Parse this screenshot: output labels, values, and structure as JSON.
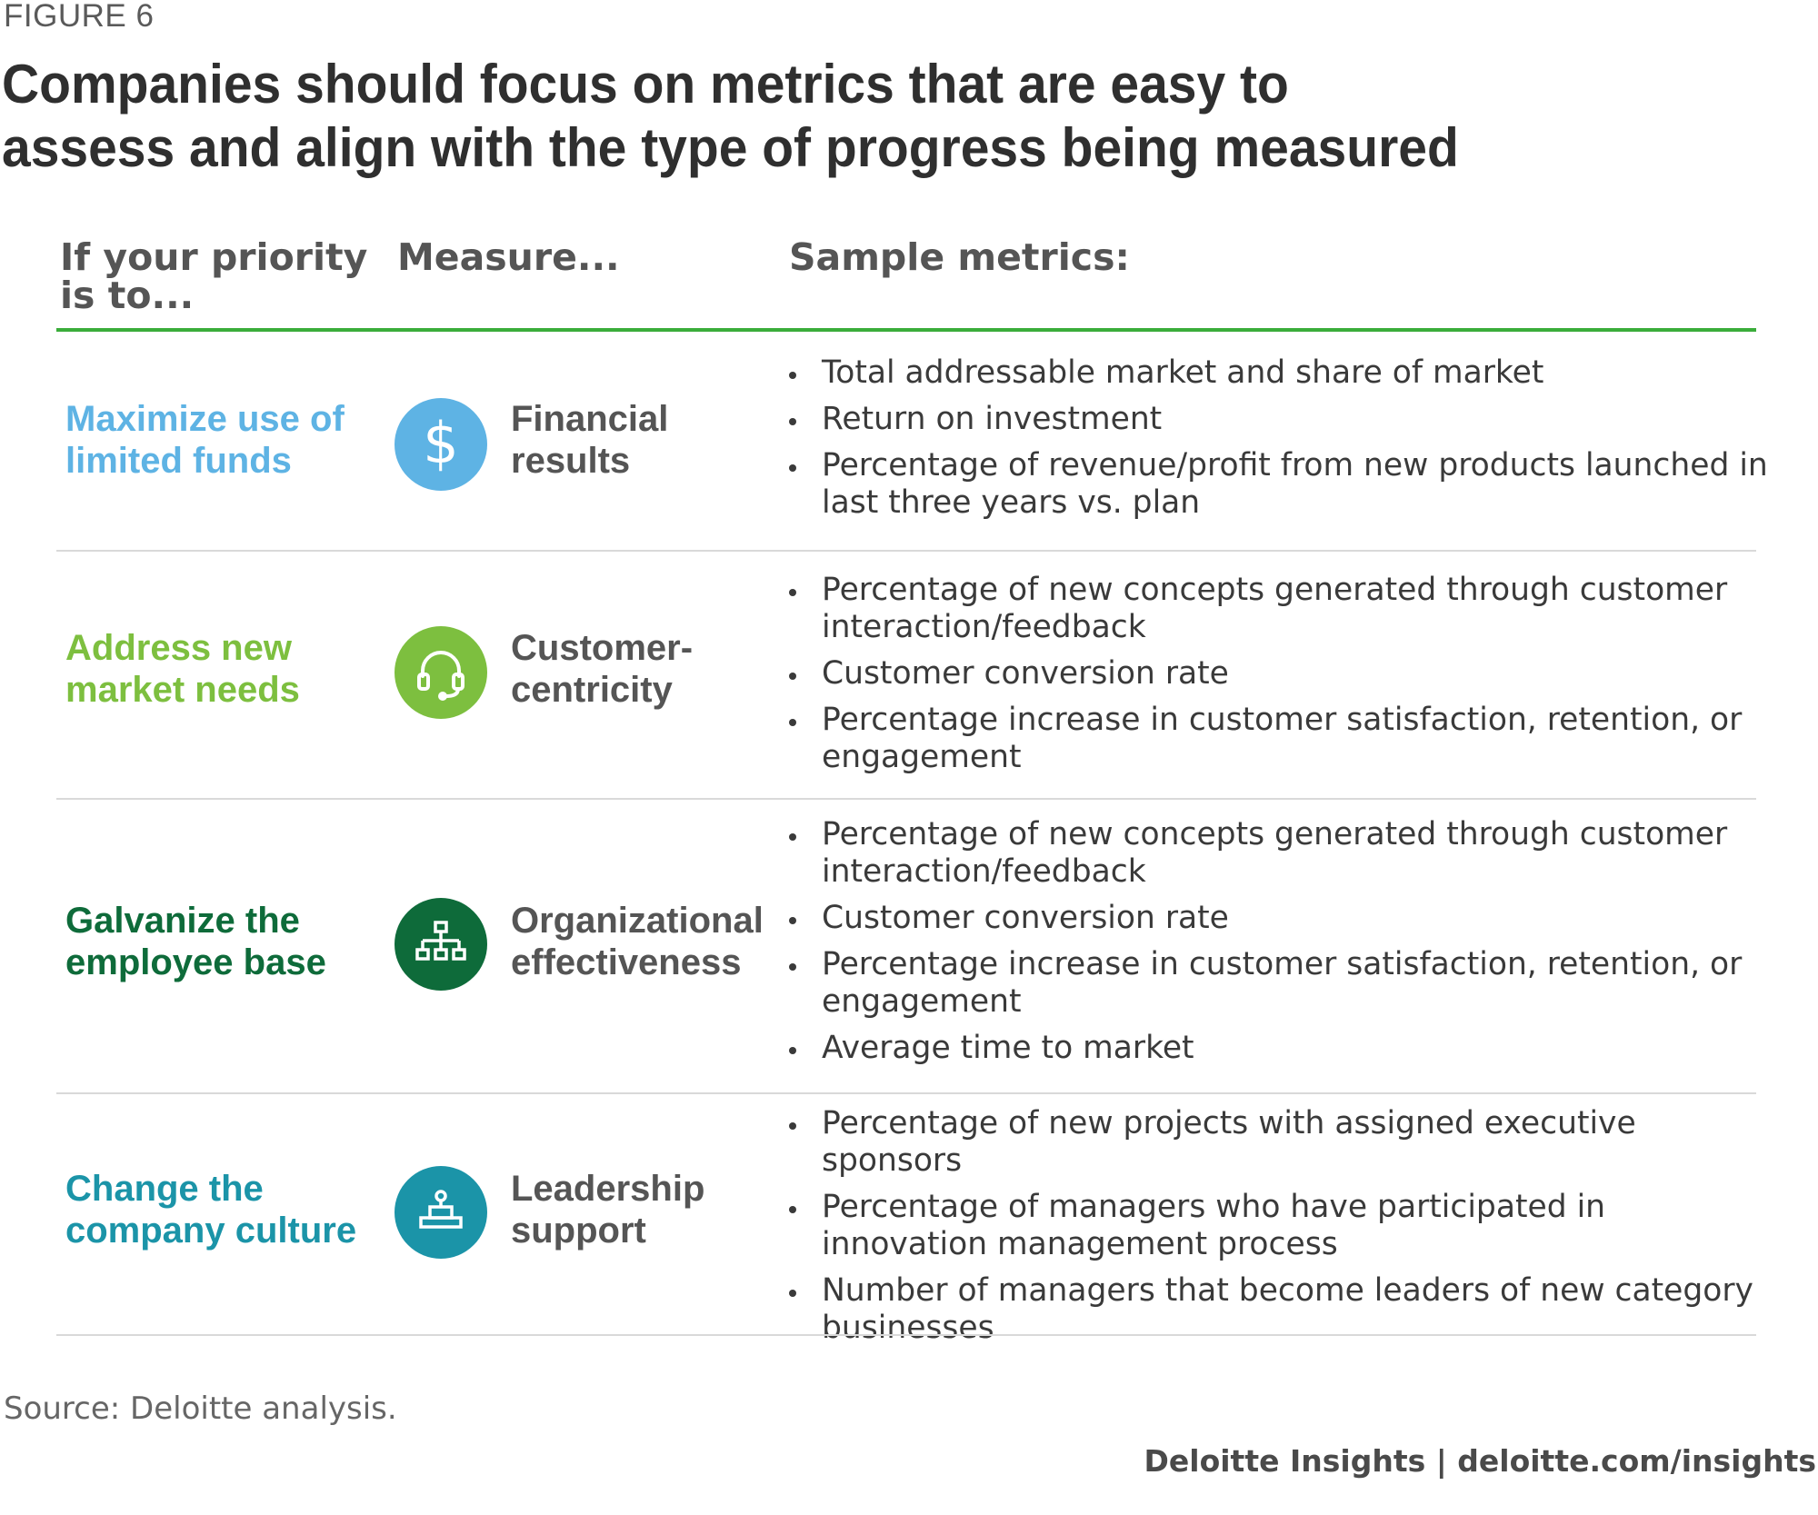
{
  "figure_label": "FIGURE 6",
  "title": "Companies should focus on metrics that are easy to assess and align with the type of progress being measured",
  "headers": {
    "priority": "If your priority is to...",
    "measure": "Measure...",
    "metrics": "Sample metrics:"
  },
  "rows": [
    {
      "priority": "Maximize use of limited funds",
      "priority_color": "#5eb3e4",
      "icon": "dollar-sign-icon",
      "icon_color": "#5eb3e4",
      "measure": "Financial results",
      "metrics": [
        "Total addressable market and share of market",
        "Return on investment",
        "Percentage of revenue/profit from new products launched in last three years vs. plan"
      ]
    },
    {
      "priority": "Address new market needs",
      "priority_color": "#7dbf3f",
      "icon": "headset-icon",
      "icon_color": "#7dbf3f",
      "measure": "Customer-centricity",
      "metrics": [
        "Percentage of new concepts generated through customer interaction/feedback",
        "Customer conversion rate",
        "Percentage increase in customer satisfaction, retention, or engagement"
      ]
    },
    {
      "priority": "Galvanize the employee base",
      "priority_color": "#0e6b3a",
      "icon": "org-chart-icon",
      "icon_color": "#0e6b3a",
      "measure": "Organizational effectiveness",
      "metrics": [
        "Percentage of new concepts generated through customer interaction/feedback",
        "Customer conversion rate",
        "Percentage increase in customer satisfaction, retention, or engagement",
        "Average time to market"
      ]
    },
    {
      "priority": "Change the company culture",
      "priority_color": "#1b94a8",
      "icon": "podium-icon",
      "icon_color": "#1b94a8",
      "measure": "Leadership support",
      "metrics": [
        "Percentage of new projects with assigned executive sponsors",
        "Percentage of managers who have participated in innovation management process",
        "Number of managers that become leaders of new category businesses"
      ]
    }
  ],
  "source": "Source: Deloitte analysis.",
  "footer": "Deloitte Insights | deloitte.com/insights"
}
